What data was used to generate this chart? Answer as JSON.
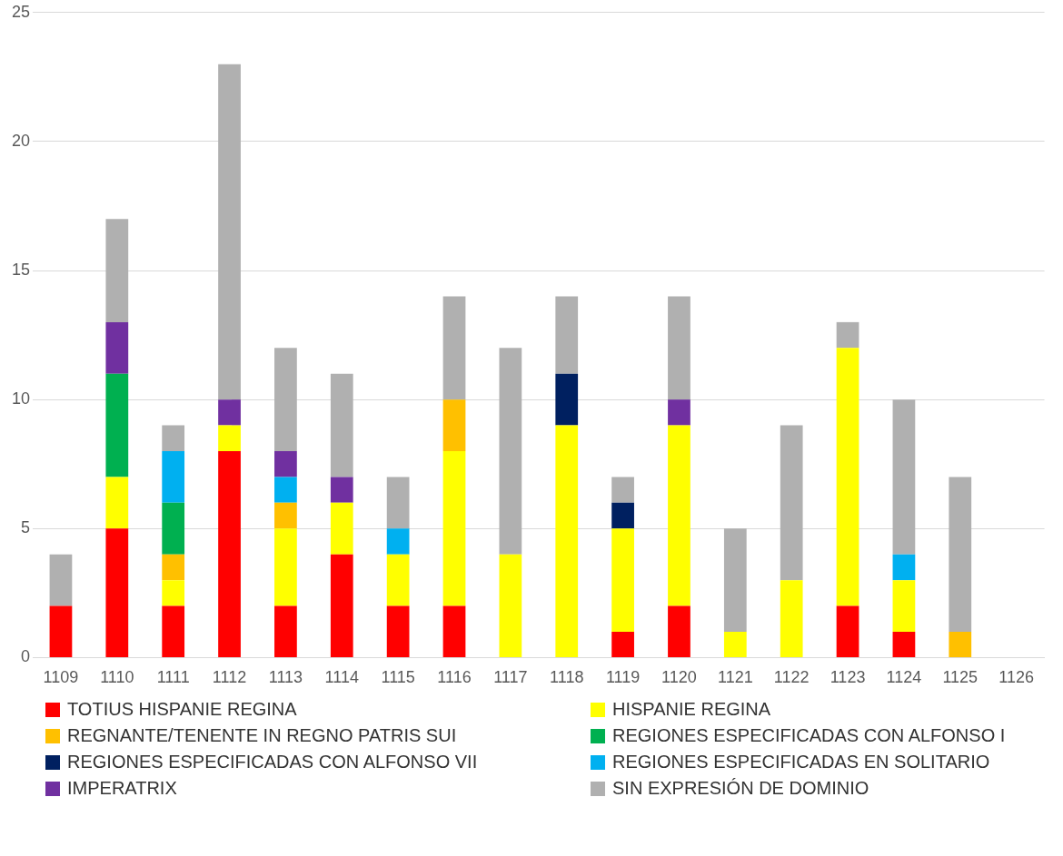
{
  "chart_data": {
    "type": "bar",
    "stacked": true,
    "categories": [
      "1109",
      "1110",
      "1111",
      "1112",
      "1113",
      "1114",
      "1115",
      "1116",
      "1117",
      "1118",
      "1119",
      "1120",
      "1121",
      "1122",
      "1123",
      "1124",
      "1125",
      "1126"
    ],
    "series": [
      {
        "name": "TOTIUS HISPANIE REGINA",
        "color": "#ff0000",
        "values": [
          2,
          5,
          2,
          8,
          2,
          4,
          2,
          2,
          0,
          0,
          1,
          2,
          0,
          0,
          2,
          1,
          0,
          0
        ]
      },
      {
        "name": "HISPANIE REGINA",
        "color": "#ffff00",
        "values": [
          0,
          2,
          1,
          1,
          3,
          2,
          2,
          6,
          4,
          9,
          4,
          7,
          1,
          3,
          10,
          2,
          0,
          0
        ]
      },
      {
        "name": "REGNANTE/TENENTE IN REGNO PATRIS SUI",
        "color": "#ffc000",
        "values": [
          0,
          0,
          1,
          0,
          1,
          0,
          0,
          2,
          0,
          0,
          0,
          0,
          0,
          0,
          0,
          0,
          1,
          0
        ]
      },
      {
        "name": "REGIONES ESPECIFICADAS CON ALFONSO I",
        "color": "#00b050",
        "values": [
          0,
          4,
          2,
          0,
          0,
          0,
          0,
          0,
          0,
          0,
          0,
          0,
          0,
          0,
          0,
          0,
          0,
          0
        ]
      },
      {
        "name": "REGIONES ESPECIFICADAS CON ALFONSO VII",
        "color": "#002060",
        "values": [
          0,
          0,
          0,
          0,
          0,
          0,
          0,
          0,
          0,
          2,
          1,
          0,
          0,
          0,
          0,
          0,
          0,
          0
        ]
      },
      {
        "name": "REGIONES ESPECIFICADAS EN SOLITARIO",
        "color": "#00b0f0",
        "values": [
          0,
          0,
          2,
          0,
          1,
          0,
          1,
          0,
          0,
          0,
          0,
          0,
          0,
          0,
          0,
          1,
          0,
          0
        ]
      },
      {
        "name": "IMPERATRIX",
        "color": "#7030a0",
        "values": [
          0,
          2,
          0,
          1,
          1,
          1,
          0,
          0,
          0,
          0,
          0,
          1,
          0,
          0,
          0,
          0,
          0,
          0
        ]
      },
      {
        "name": "SIN EXPRESIÓN DE DOMINIO",
        "color": "#b0b0b0",
        "values": [
          2,
          4,
          1,
          13,
          4,
          4,
          2,
          4,
          8,
          3,
          1,
          4,
          4,
          6,
          1,
          6,
          6,
          0
        ]
      }
    ],
    "ylim": [
      0,
      25
    ],
    "yticks": [
      0,
      5,
      10,
      15,
      20,
      25
    ],
    "grid": "y",
    "legend": "bottom"
  }
}
